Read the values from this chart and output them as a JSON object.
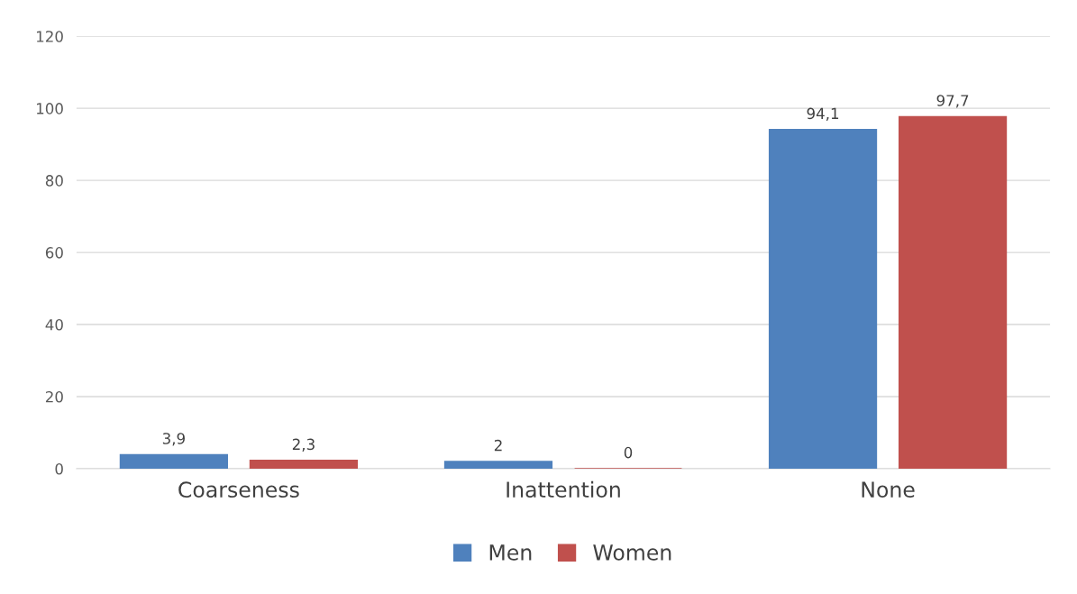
{
  "chart_data": {
    "type": "bar",
    "categories": [
      "Coarseness",
      "Inattention",
      "None"
    ],
    "series": [
      {
        "name": "Men",
        "color": "#4f81bd",
        "values": [
          3.9,
          2,
          94.1
        ],
        "value_labels": [
          "3,9",
          "2",
          "94,1"
        ]
      },
      {
        "name": "Women",
        "color": "#c0504d",
        "values": [
          2.3,
          0,
          97.7
        ],
        "value_labels": [
          "2,3",
          "0",
          "97,7"
        ]
      }
    ],
    "ylim": [
      0,
      120
    ],
    "yticks": [
      0,
      20,
      40,
      60,
      80,
      100,
      120
    ],
    "grid": "y",
    "legend": "bottom"
  }
}
